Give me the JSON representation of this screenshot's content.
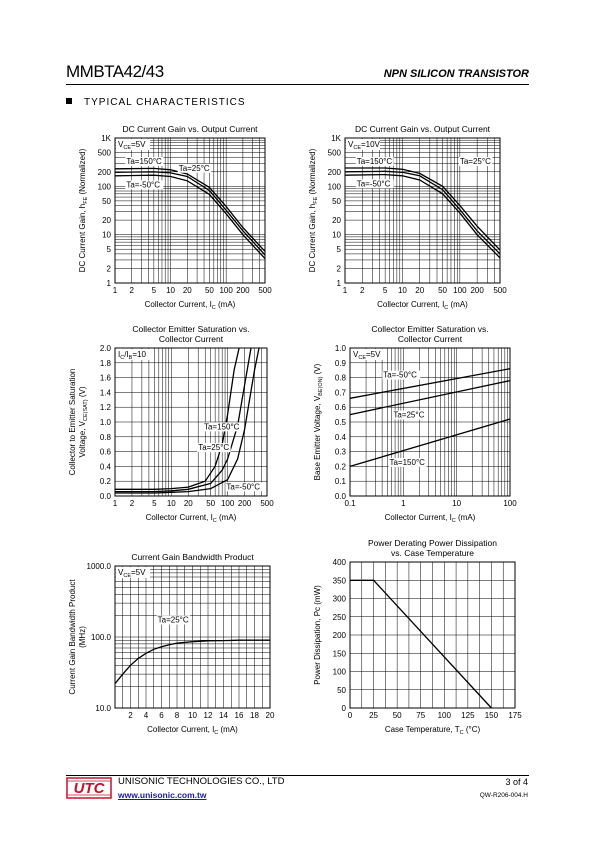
{
  "header": {
    "part_number": "MMBTA42/43",
    "device_type": "NPN SILICON TRANSISTOR"
  },
  "section": {
    "title": "TYPICAL CHARACTERISTICS"
  },
  "charts": [
    {
      "id": "c1",
      "type": "line",
      "title_lines": [
        "DC Current Gain vs. Output Current"
      ],
      "xscale": "log",
      "yscale": "log",
      "xlim": [
        1,
        500
      ],
      "ylim": [
        1,
        1000
      ],
      "xticks": [
        1,
        2,
        5,
        10,
        20,
        50,
        100,
        200,
        500
      ],
      "xticklabels": [
        "1",
        "2",
        "5",
        "10",
        "20",
        "50",
        "100",
        "200",
        "500"
      ],
      "yticks": [
        1,
        2,
        5,
        10,
        20,
        50,
        100,
        200,
        500,
        1000
      ],
      "yticklabels": [
        "1",
        "2",
        "5",
        "10",
        "20",
        "50",
        "100",
        "200",
        "500",
        "1K"
      ],
      "xlabel": "Collector Current, I",
      "xlabel_sub": "C",
      "xlabel_tail": " (mA)",
      "ylabel": "DC Current Gain, h",
      "ylabel_sub": "FE",
      "ylabel_tail": " (Normalized)",
      "condition": "V",
      "condition_sub": "CE",
      "condition_tail": "=5V",
      "series": [
        {
          "name": "Ta=150°C",
          "x": [
            1,
            5,
            10,
            20,
            50,
            100,
            200,
            500
          ],
          "y": [
            230,
            235,
            220,
            180,
            95,
            38,
            14,
            4.5
          ]
        },
        {
          "name": "Ta=25°C",
          "x": [
            1,
            5,
            10,
            20,
            50,
            100,
            200,
            500
          ],
          "y": [
            195,
            200,
            190,
            160,
            82,
            32,
            12,
            3.8
          ]
        },
        {
          "name": "Ta=-50°C",
          "x": [
            1,
            5,
            10,
            20,
            50,
            100,
            200,
            500
          ],
          "y": [
            165,
            170,
            160,
            130,
            68,
            27,
            10,
            3.2
          ]
        }
      ],
      "annotations": [
        {
          "text": "Ta=150°C",
          "x": 1.6,
          "y": 290
        },
        {
          "text": "Ta=25°C",
          "x": 14,
          "y": 210
        },
        {
          "text": "Ta=-50°C",
          "x": 1.6,
          "y": 95
        }
      ]
    },
    {
      "id": "c2",
      "type": "line",
      "title_lines": [
        "DC Current Gain vs. Output Current"
      ],
      "xscale": "log",
      "yscale": "log",
      "xlim": [
        1,
        500
      ],
      "ylim": [
        1,
        1000
      ],
      "xticks": [
        1,
        2,
        5,
        10,
        20,
        50,
        100,
        200,
        500
      ],
      "xticklabels": [
        "1",
        "2",
        "5",
        "10",
        "20",
        "50",
        "100",
        "200",
        "500"
      ],
      "yticks": [
        1,
        2,
        5,
        10,
        20,
        50,
        100,
        200,
        500,
        1000
      ],
      "yticklabels": [
        "1",
        "2",
        "5",
        "10",
        "20",
        "50",
        "100",
        "200",
        "500",
        "1K"
      ],
      "xlabel": "Collector Current, I",
      "xlabel_sub": "C",
      "xlabel_tail": " (mA)",
      "ylabel": "DC Current Gain, h",
      "ylabel_sub": "FE",
      "ylabel_tail": " (Normalized)",
      "condition": "V",
      "condition_sub": "CE",
      "condition_tail": "=10V",
      "series": [
        {
          "name": "Ta=150°C",
          "x": [
            1,
            5,
            10,
            20,
            50,
            100,
            200,
            500
          ],
          "y": [
            240,
            240,
            225,
            185,
            100,
            40,
            15,
            4.8
          ]
        },
        {
          "name": "Ta=25°C",
          "x": [
            1,
            5,
            10,
            20,
            50,
            100,
            200,
            500
          ],
          "y": [
            200,
            205,
            195,
            165,
            85,
            33,
            12,
            4
          ]
        },
        {
          "name": "Ta=-50°C",
          "x": [
            1,
            5,
            10,
            20,
            50,
            100,
            200,
            500
          ],
          "y": [
            170,
            175,
            165,
            135,
            70,
            28,
            10,
            3.3
          ]
        }
      ],
      "annotations": [
        {
          "text": "Ta=150°C",
          "x": 1.6,
          "y": 290
        },
        {
          "text": "Ta=25°C",
          "x": 100,
          "y": 290
        },
        {
          "text": "Ta=-50°C",
          "x": 1.6,
          "y": 100
        }
      ]
    },
    {
      "id": "c3",
      "type": "line",
      "title_lines": [
        "Collector Emitter Saturation vs.",
        "Collector Current"
      ],
      "xscale": "log",
      "yscale": "linear",
      "xlim": [
        1,
        500
      ],
      "ylim": [
        0,
        2.0
      ],
      "xticks": [
        1,
        2,
        5,
        10,
        20,
        50,
        100,
        200,
        500
      ],
      "xticklabels": [
        "1",
        "2",
        "5",
        "10",
        "20",
        "50",
        "100",
        "200",
        "500"
      ],
      "yticks": [
        0,
        0.2,
        0.4,
        0.6,
        0.8,
        1.0,
        1.2,
        1.4,
        1.6,
        1.8,
        2.0
      ],
      "yticklabels": [
        "0.0",
        "0.2",
        "0.4",
        "0.6",
        "0.8",
        "1.0",
        "1.2",
        "1.4",
        "1.6",
        "1.8",
        "2.0"
      ],
      "xlabel": "Collector Current, I",
      "xlabel_sub": "C",
      "xlabel_tail": " (mA)",
      "ylabel_line1": "Collector to Emitter Saturation",
      "ylabel": "Voltage, V",
      "ylabel_sub": "CE(SAT)",
      "ylabel_tail": " (V)",
      "condition": "I",
      "condition_sub": "C",
      "condition_tail": "/I",
      "condition_sub2": "B",
      "condition_tail2": "=10",
      "series": [
        {
          "name": "Ta=150°C",
          "x": [
            1,
            5,
            10,
            20,
            40,
            60,
            80,
            100,
            130,
            160
          ],
          "y": [
            0.09,
            0.09,
            0.1,
            0.12,
            0.2,
            0.4,
            0.7,
            1.1,
            1.7,
            2.0
          ]
        },
        {
          "name": "Ta=25°C",
          "x": [
            1,
            5,
            10,
            20,
            50,
            80,
            100,
            150,
            200,
            260
          ],
          "y": [
            0.06,
            0.06,
            0.07,
            0.09,
            0.17,
            0.35,
            0.5,
            0.95,
            1.5,
            2.0
          ]
        },
        {
          "name": "Ta=-50°C",
          "x": [
            1,
            5,
            10,
            20,
            50,
            100,
            150,
            200,
            300,
            360
          ],
          "y": [
            0.04,
            0.04,
            0.05,
            0.06,
            0.1,
            0.22,
            0.5,
            0.9,
            1.7,
            2.0
          ]
        }
      ],
      "annotations": [
        {
          "text": "Ta=150°C",
          "x": 38,
          "y": 0.9
        },
        {
          "text": "Ta=25°C",
          "x": 30,
          "y": 0.62
        },
        {
          "text": "Ta=-50°C",
          "x": 95,
          "y": 0.09
        }
      ]
    },
    {
      "id": "c4",
      "type": "line",
      "title_lines": [
        "Collector Emitter Saturation vs.",
        "Collector Current"
      ],
      "xscale": "log",
      "yscale": "linear",
      "xlim": [
        0.1,
        100
      ],
      "ylim": [
        0,
        1.0
      ],
      "xticks": [
        0.1,
        1,
        10,
        100
      ],
      "xticklabels": [
        "0.1",
        "1",
        "10",
        "100"
      ],
      "yticks": [
        0,
        0.1,
        0.2,
        0.3,
        0.4,
        0.5,
        0.6,
        0.7,
        0.8,
        0.9,
        1.0
      ],
      "yticklabels": [
        "0.0",
        "0.1",
        "0.2",
        "0.3",
        "0.4",
        "0.5",
        "0.6",
        "0.7",
        "0.8",
        "0.9",
        "1.0"
      ],
      "xlabel": "Collector Current, I",
      "xlabel_sub": "C",
      "xlabel_tail": " (mA)",
      "ylabel": "Base Emitter Voltage, V",
      "ylabel_sub": "BE(ON)",
      "ylabel_tail": " (V)",
      "condition": "V",
      "condition_sub": "CE",
      "condition_tail": "=5V",
      "series": [
        {
          "name": "Ta=-50°C",
          "x": [
            0.1,
            100
          ],
          "y": [
            0.66,
            0.86
          ]
        },
        {
          "name": "Ta=25°C",
          "x": [
            0.1,
            100
          ],
          "y": [
            0.55,
            0.78
          ]
        },
        {
          "name": "Ta=150°C",
          "x": [
            0.1,
            100
          ],
          "y": [
            0.2,
            0.52
          ]
        }
      ],
      "annotations": [
        {
          "text": "Ta=-50°C",
          "x": 0.42,
          "y": 0.8
        },
        {
          "text": "Ta=25°C",
          "x": 0.65,
          "y": 0.53
        },
        {
          "text": "Ta=150°C",
          "x": 0.55,
          "y": 0.21
        }
      ]
    },
    {
      "id": "c5",
      "type": "line",
      "title_lines": [
        "Current Gain Bandwidth Product"
      ],
      "xscale": "linear",
      "yscale": "log",
      "xlim": [
        0,
        20
      ],
      "ylim": [
        10,
        1000
      ],
      "xticks": [
        2,
        4,
        6,
        8,
        10,
        12,
        14,
        16,
        18,
        20
      ],
      "xticklabels": [
        "2",
        "4",
        "6",
        "8",
        "10",
        "12",
        "14",
        "16",
        "18",
        "20"
      ],
      "yticks": [
        10,
        100,
        1000
      ],
      "yticklabels": [
        "10.0",
        "100.0",
        "1000.0"
      ],
      "xlabel": "Collector Current, I",
      "xlabel_sub": "C",
      "xlabel_tail": " (mA)",
      "ylabel_line1": "Current Gain Bandwidth Product",
      "ylabel": "(MHz)",
      "ylabel_sub": "",
      "ylabel_tail": "",
      "condition": "V",
      "condition_sub": "CE",
      "condition_tail": "=5V",
      "series": [
        {
          "name": "Ta=25°C",
          "x": [
            0,
            1,
            2,
            3,
            4,
            5,
            6,
            7,
            8,
            10,
            12,
            14,
            16,
            18,
            20
          ],
          "y": [
            22,
            30,
            40,
            50,
            59,
            67,
            73,
            78,
            82,
            86,
            88,
            89,
            90,
            90,
            90
          ]
        }
      ],
      "annotations": [
        {
          "text": "Ta=25°C",
          "x": 5.5,
          "y": 160
        }
      ]
    },
    {
      "id": "c6",
      "type": "line",
      "title_lines": [
        "Power Derating Power Dissipation",
        "vs. Case Temperature"
      ],
      "xscale": "linear",
      "yscale": "linear",
      "xlim": [
        0,
        175
      ],
      "ylim": [
        0,
        400
      ],
      "xticks": [
        0,
        25,
        50,
        75,
        100,
        125,
        150,
        175
      ],
      "xticklabels": [
        "0",
        "25",
        "50",
        "75",
        "100",
        "125",
        "150",
        "175"
      ],
      "yticks": [
        0,
        50,
        100,
        150,
        200,
        250,
        300,
        350,
        400
      ],
      "yticklabels": [
        "0",
        "50",
        "100",
        "150",
        "200",
        "250",
        "300",
        "350",
        "400"
      ],
      "xlabel": "Case Temperature, T",
      "xlabel_sub": "C",
      "xlabel_tail": " (°C)",
      "ylabel": "Power Dissipation, Pc (mW)",
      "ylabel_sub": "",
      "ylabel_tail": "",
      "condition": "",
      "condition_sub": "",
      "condition_tail": "",
      "series": [
        {
          "name": "",
          "x": [
            0,
            25,
            150
          ],
          "y": [
            350,
            350,
            0
          ]
        }
      ],
      "annotations": []
    }
  ],
  "footer": {
    "logo_text": "UTC",
    "company": "UNISONIC TECHNOLOGIES CO., LTD",
    "website": "www.unisonic.com.tw",
    "page": "3 of 4",
    "doc_number": "QW-R206-004.H"
  },
  "colors": {
    "ink": "#000000",
    "logo_red": "#c8102e",
    "link_blue": "#1a1aa6"
  }
}
